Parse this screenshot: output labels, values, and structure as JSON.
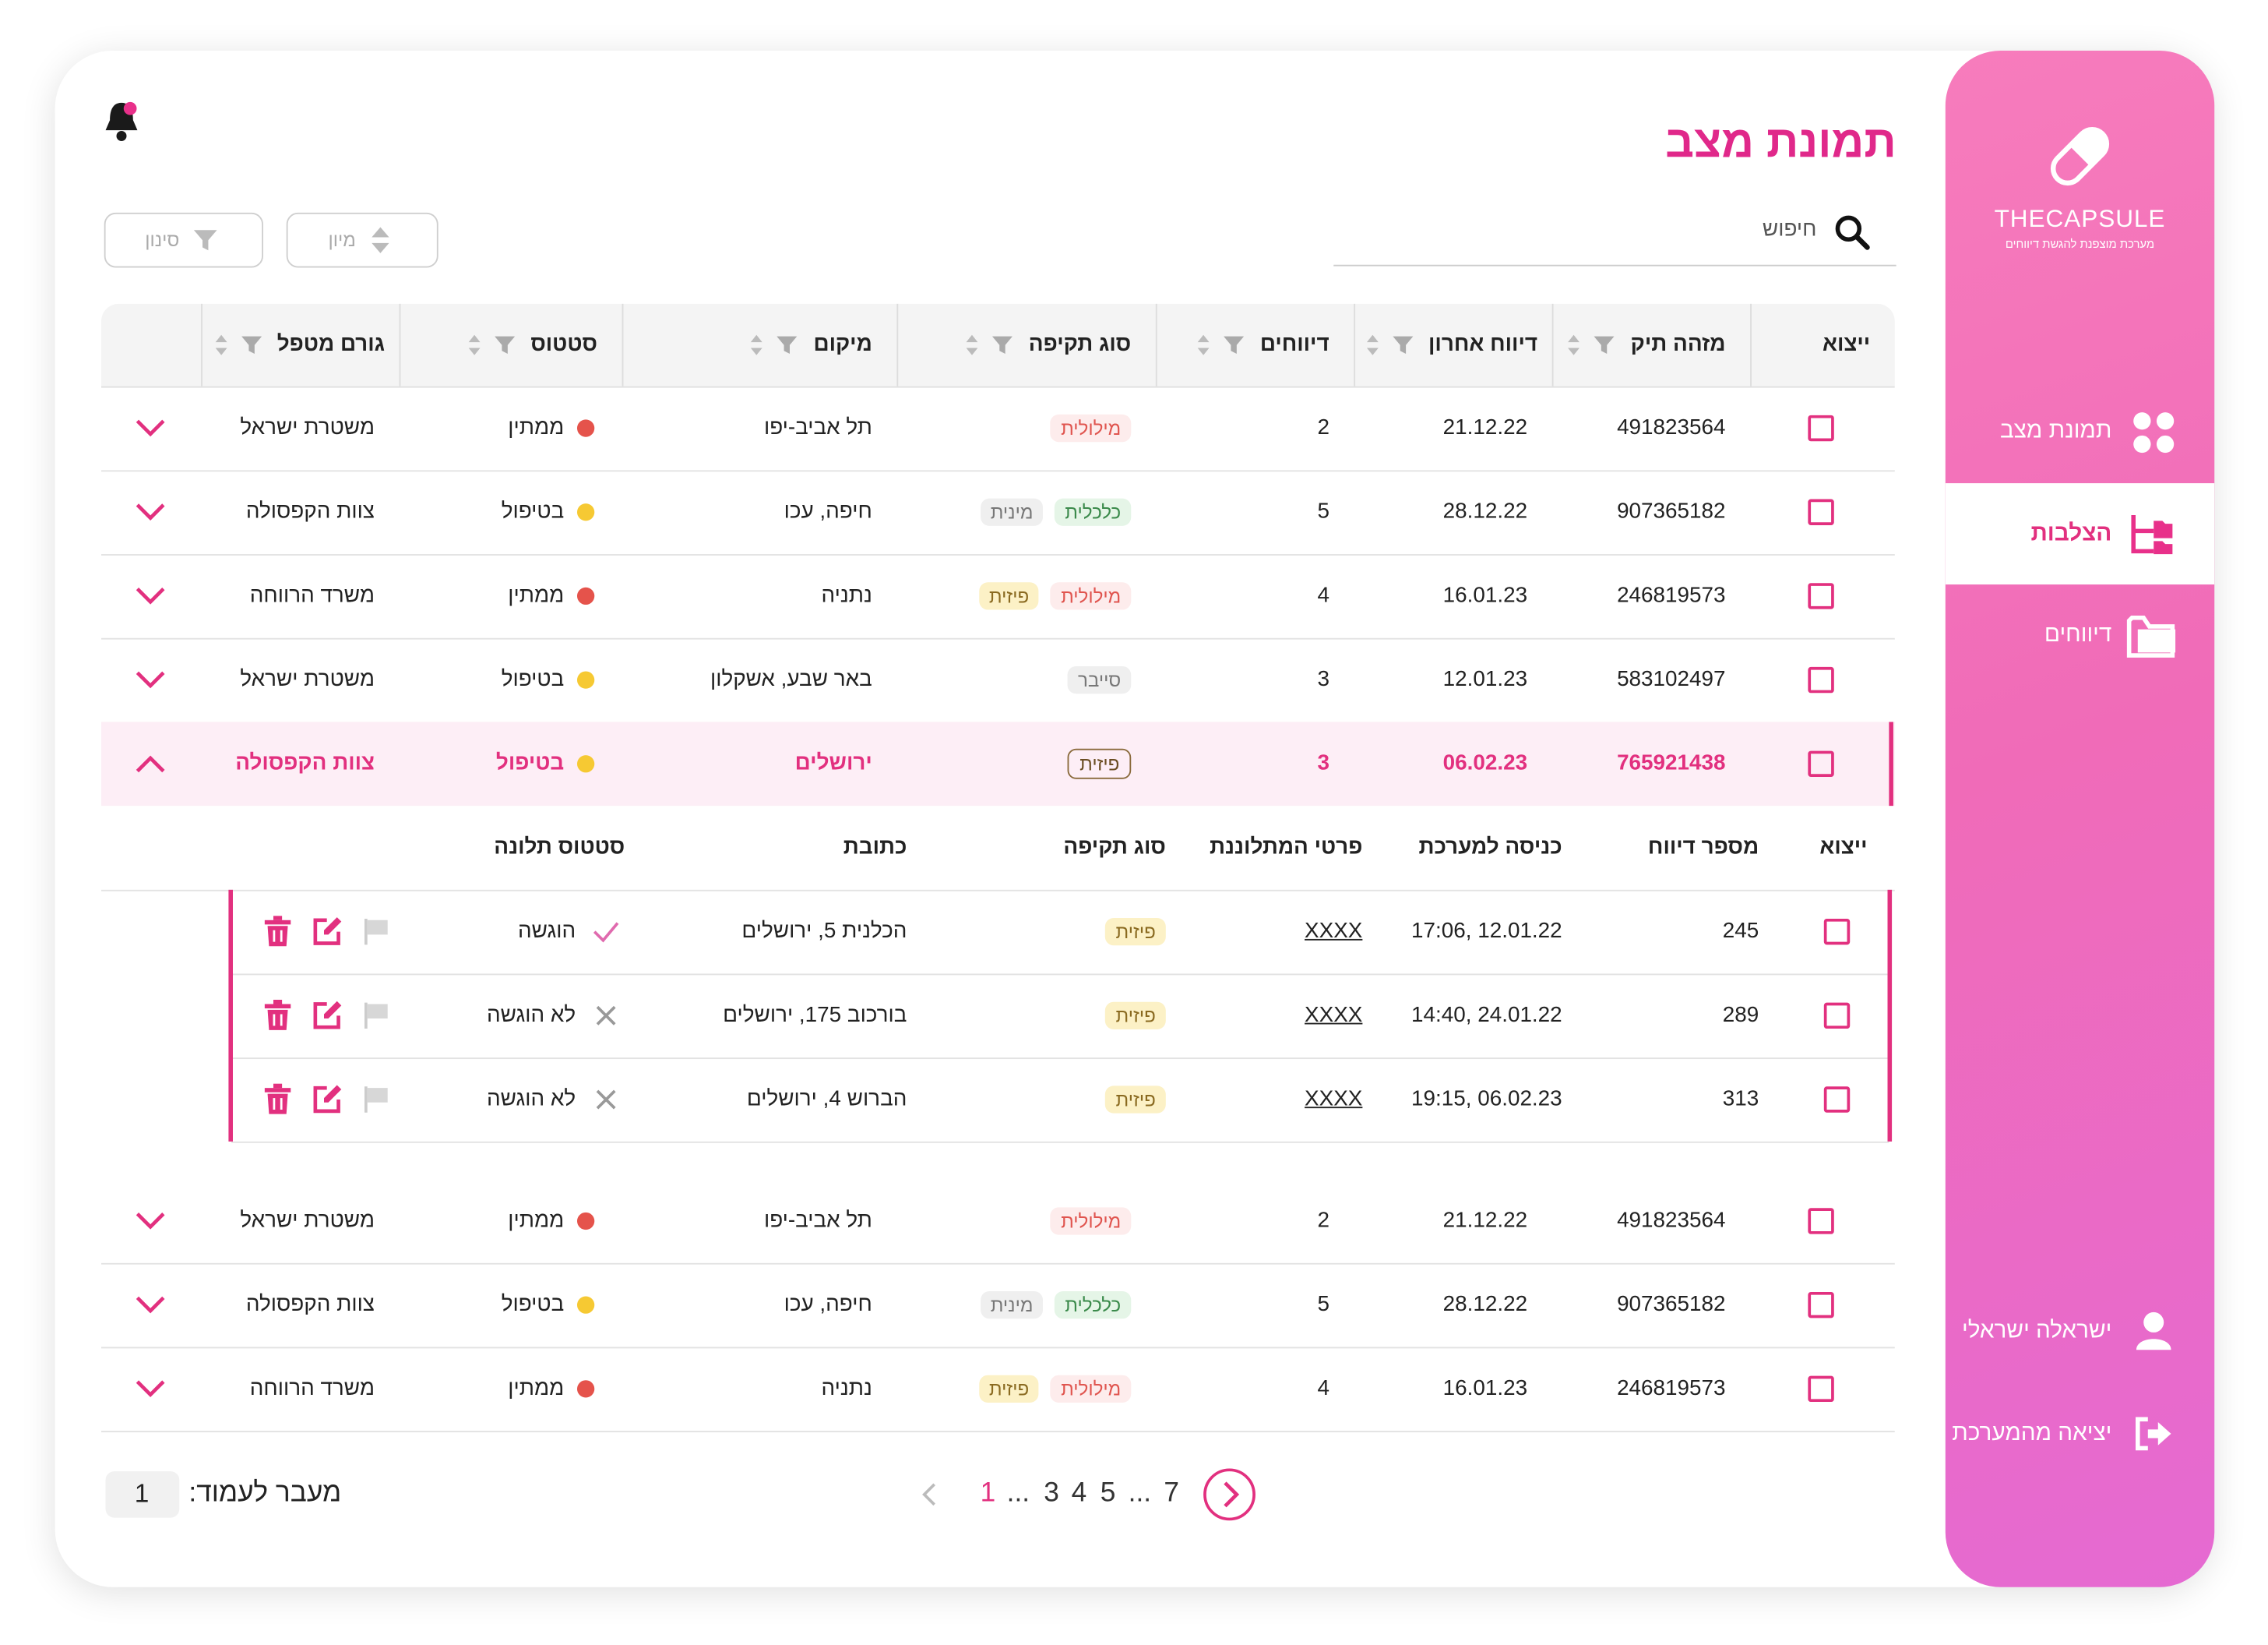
{
  "sidebar": {
    "brand": "THECAPSULE",
    "tagline": "מערכת מוצפנת להגשת דיווחים",
    "nav": [
      {
        "label": "תמונת מצב",
        "active": false
      },
      {
        "label": "הצלבות",
        "active": true
      },
      {
        "label": "דיווחים",
        "active": false
      }
    ],
    "user": "ישראלה ישראלי",
    "logout": "יציאה מהמערכת"
  },
  "header": {
    "title": "תמונת מצב",
    "search_placeholder": "חיפוש",
    "sort_button": "מיון",
    "filter_button": "סינון"
  },
  "table": {
    "columns": [
      "ייצוא",
      "מזהה תיק",
      "דיווח אחרון",
      "דיווחים",
      "סוג תקיפה",
      "מיקום",
      "סטטוס",
      "גורם מטפל"
    ],
    "status_colors": {
      "ממתין": "#e5534b",
      "בטיפול": "#f6c933"
    },
    "tag_colors": {
      "מילולית": [
        "#fdecec",
        "#e0554f"
      ],
      "כלכלית": [
        "#e5f5e7",
        "#3b8a4b"
      ],
      "מינית": [
        "#efefef",
        "#777777"
      ],
      "פיזית": [
        "#fcf1c6",
        "#8a6a20"
      ],
      "סייבר": [
        "#efefef",
        "#777777"
      ]
    },
    "rows": [
      {
        "id": "491823564",
        "last_report": "21.12.22",
        "reports": 2,
        "tags": [
          "מילולית"
        ],
        "location": "תל אביב-יפו",
        "status": "ממתין",
        "handler": "משטרת ישראל",
        "expanded": false
      },
      {
        "id": "907365182",
        "last_report": "28.12.22",
        "reports": 5,
        "tags": [
          "כלכלית",
          "מינית"
        ],
        "location": "חיפה, עכו",
        "status": "בטיפול",
        "handler": "צוות הקפסולה",
        "expanded": false
      },
      {
        "id": "246819573",
        "last_report": "16.01.23",
        "reports": 4,
        "tags": [
          "מילולית",
          "פיזית"
        ],
        "location": "נתניה",
        "status": "ממתין",
        "handler": "משרד הרווחה",
        "expanded": false
      },
      {
        "id": "583102497",
        "last_report": "12.01.23",
        "reports": 3,
        "tags": [
          "סייבר"
        ],
        "location": "באר שבע, אשקלון",
        "status": "בטיפול",
        "handler": "משטרת ישראל",
        "expanded": false
      },
      {
        "id": "765921438",
        "last_report": "06.02.23",
        "reports": 3,
        "tags": [
          "פיזית"
        ],
        "location": "ירושלים",
        "status": "בטיפול",
        "handler": "צוות הקפסולה",
        "expanded": true,
        "details": {
          "columns": [
            "ייצוא",
            "מספר דיווח",
            "כניסה למערכת",
            "פרטי המתלוננת",
            "סוג תקיפה",
            "כתובת",
            "סטטוס תלונה"
          ],
          "rows": [
            {
              "number": 245,
              "entered": "17:06, 12.01.22",
              "complainant": "XXXX",
              "attack_type": "פיזית",
              "address": "הכלנית 5, ירושלים",
              "status": "הוגשה",
              "submitted": true
            },
            {
              "number": 289,
              "entered": "14:40, 24.01.22",
              "complainant": "XXXX",
              "attack_type": "פיזית",
              "address": "בורכוב 175, ירושלים",
              "status": "לא הוגשה",
              "submitted": false
            },
            {
              "number": 313,
              "entered": "19:15, 06.02.23",
              "complainant": "XXXX",
              "attack_type": "פיזית",
              "address": "הברוש 4, ירושלים",
              "status": "לא הוגשה",
              "submitted": false
            }
          ]
        }
      },
      {
        "id": "491823564",
        "last_report": "21.12.22",
        "reports": 2,
        "tags": [
          "מילולית"
        ],
        "location": "תל אביב-יפו",
        "status": "ממתין",
        "handler": "משטרת ישראל",
        "expanded": false
      },
      {
        "id": "907365182",
        "last_report": "28.12.22",
        "reports": 5,
        "tags": [
          "כלכלית",
          "מינית"
        ],
        "location": "חיפה, עכו",
        "status": "בטיפול",
        "handler": "צוות הקפסולה",
        "expanded": false
      },
      {
        "id": "246819573",
        "last_report": "16.01.23",
        "reports": 4,
        "tags": [
          "מילולית",
          "פיזית"
        ],
        "location": "נתניה",
        "status": "ממתין",
        "handler": "משרד הרווחה",
        "expanded": false
      }
    ]
  },
  "pagination": {
    "pages": [
      {
        "label": "1",
        "current": true
      },
      {
        "label": "...",
        "current": false
      },
      {
        "label": "3",
        "current": false
      },
      {
        "label": "4",
        "current": false
      },
      {
        "label": "5",
        "current": false
      },
      {
        "label": "...",
        "current": false
      },
      {
        "label": "7",
        "current": false
      }
    ],
    "goto_label": "מעבר לעמוד:",
    "goto_value": "1"
  }
}
